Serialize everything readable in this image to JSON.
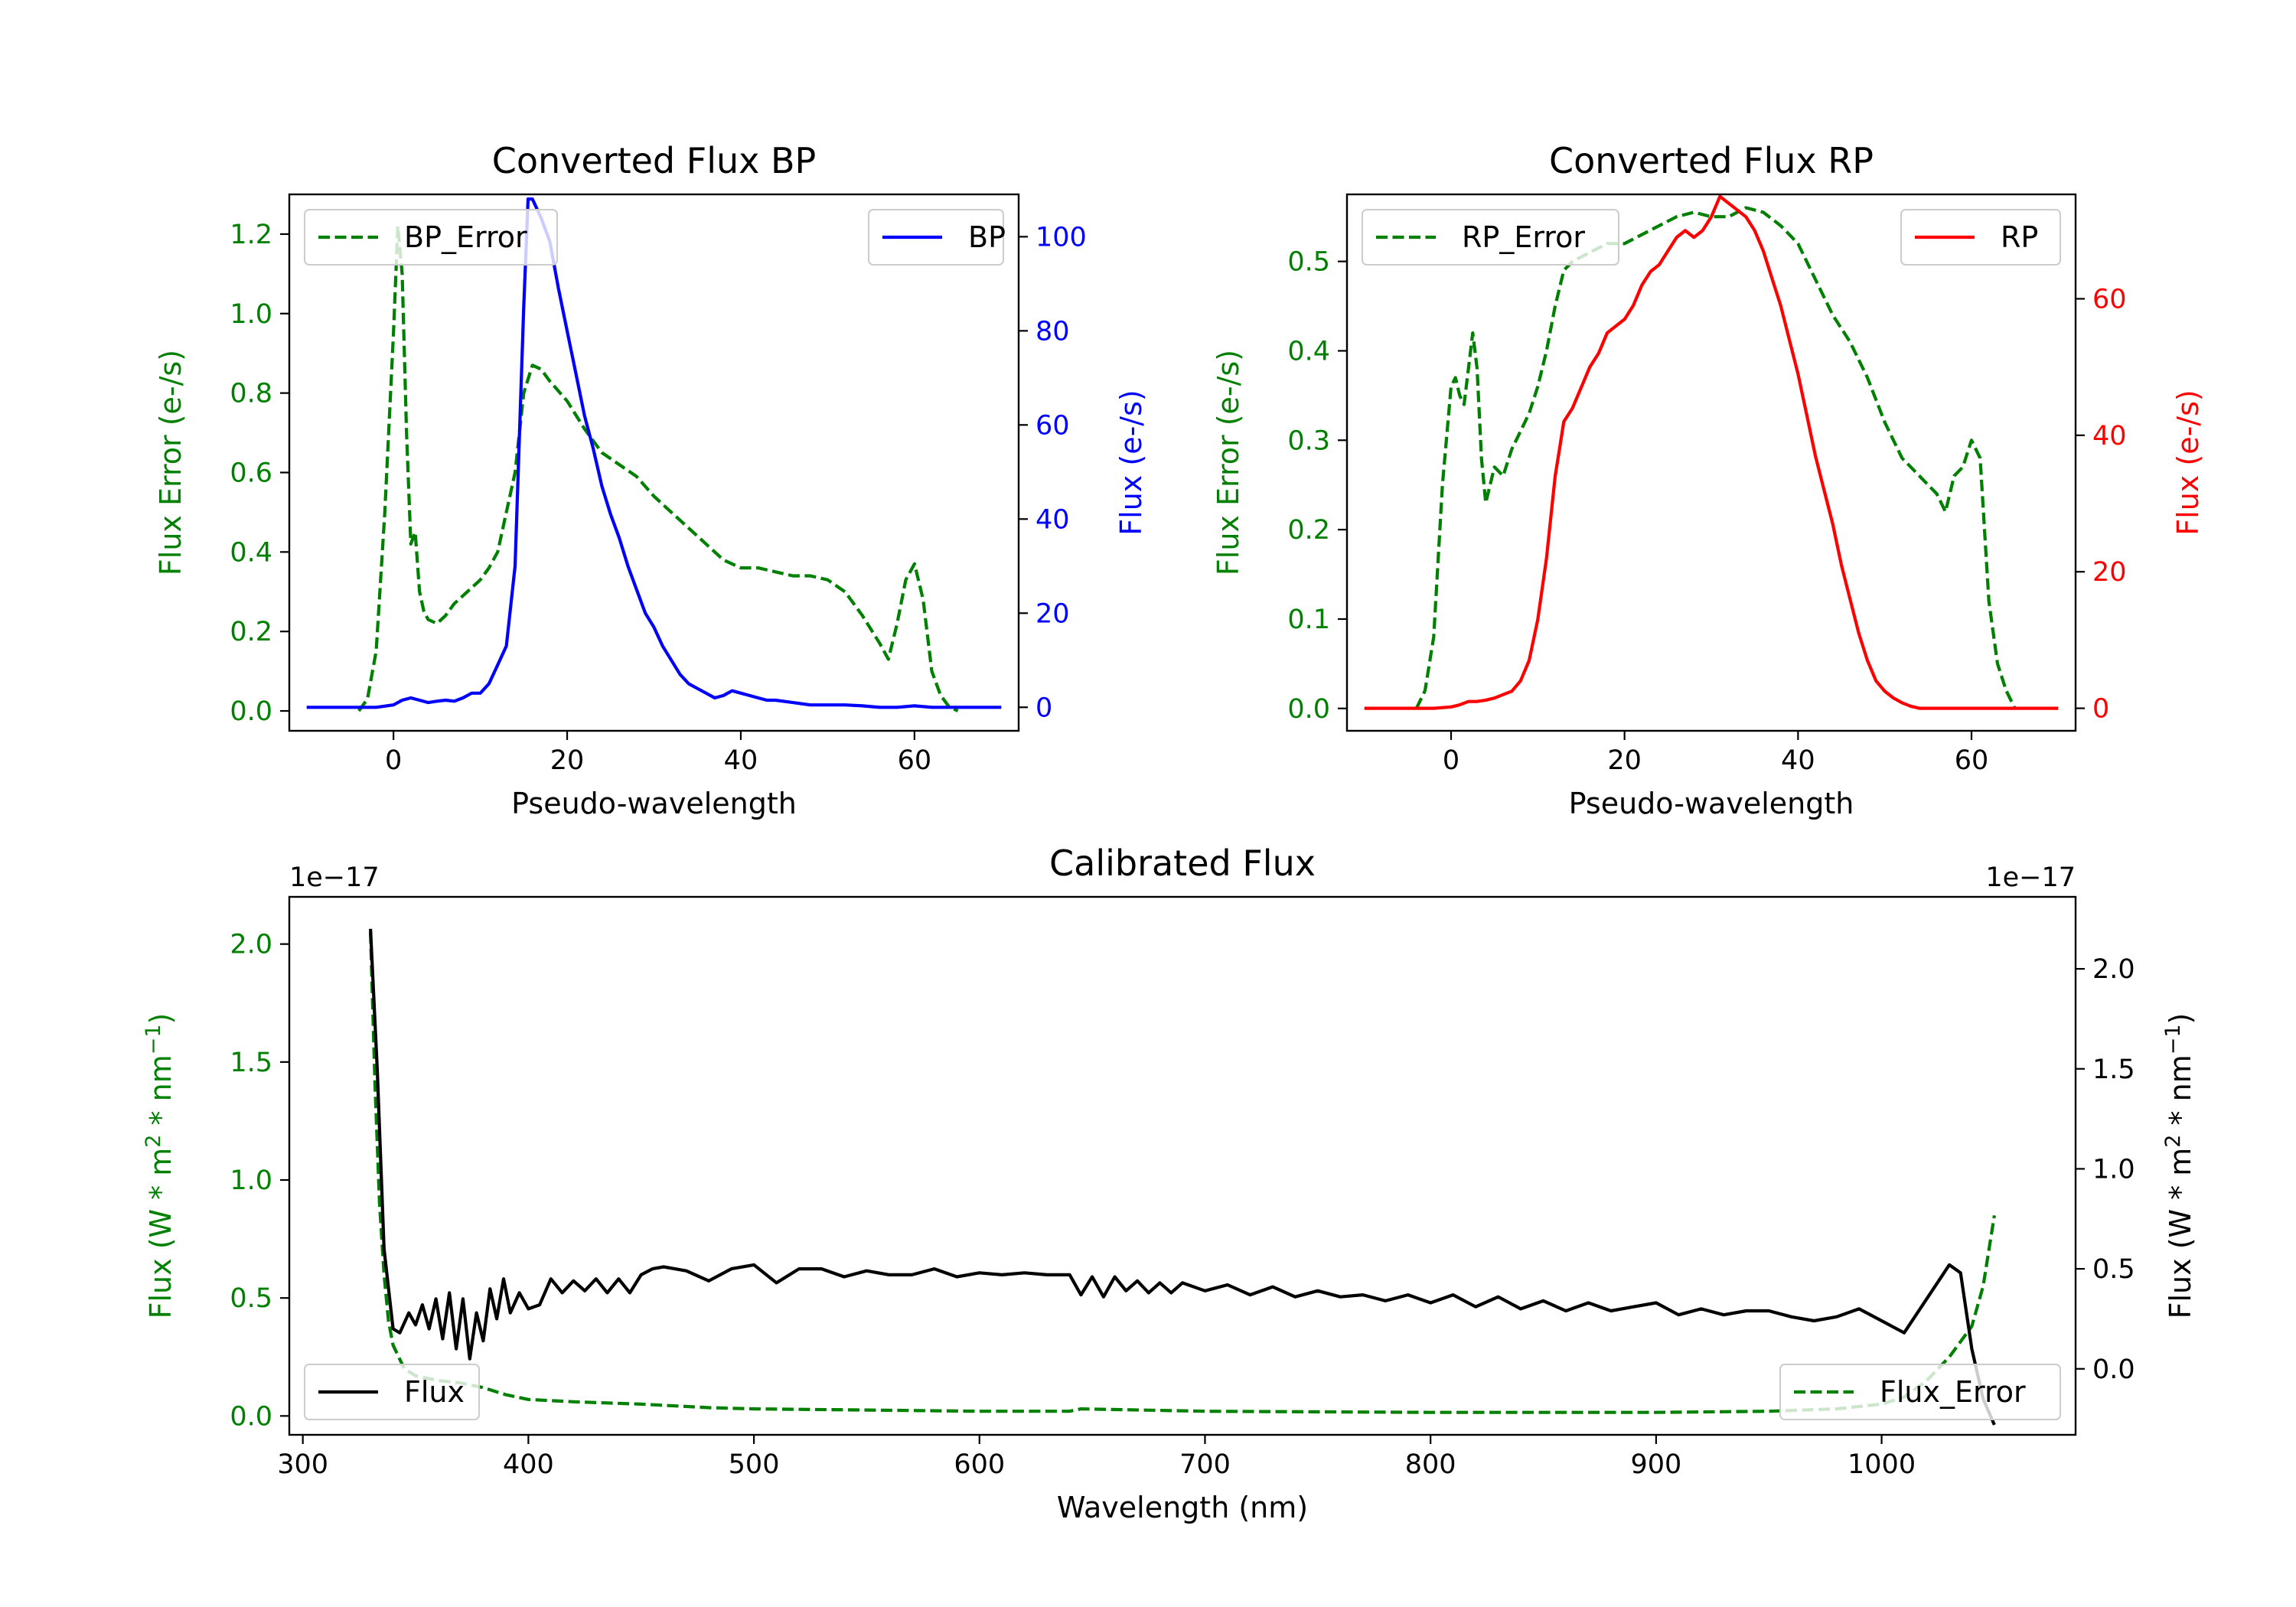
{
  "chart_data": [
    {
      "id": "bp",
      "type": "line",
      "title": "Converted Flux BP",
      "xlabel": "Pseudo-wavelength",
      "xlim": [
        -12,
        72
      ],
      "xticks": [
        0,
        20,
        40,
        60
      ],
      "left": {
        "ylabel": "Flux Error (e-/s)",
        "ylim": [
          -0.05,
          1.3
        ],
        "yticks": [
          0.0,
          0.2,
          0.4,
          0.6,
          0.8,
          1.0,
          1.2
        ],
        "ytick_labels": [
          "0.0",
          "0.2",
          "0.4",
          "0.6",
          "0.8",
          "1.0",
          "1.2"
        ],
        "color": "#008000"
      },
      "right": {
        "ylabel": "Flux (e-/s)",
        "ylim": [
          -5,
          109
        ],
        "yticks": [
          0,
          20,
          40,
          60,
          80,
          100
        ],
        "ytick_labels": [
          "0",
          "20",
          "40",
          "60",
          "80",
          "100"
        ],
        "color": "#0000ff"
      },
      "series": [
        {
          "name": "BP_Error",
          "axis": "left",
          "style": "dashed",
          "color": "#008000",
          "x": [
            -4,
            -3,
            -2,
            -1,
            0,
            0.5,
            1,
            1.5,
            2,
            2.5,
            3,
            3.5,
            4,
            5,
            6,
            7,
            8,
            9,
            10,
            11,
            12,
            13,
            14,
            15,
            16,
            17,
            18,
            20,
            22,
            24,
            26,
            28,
            30,
            32,
            34,
            36,
            38,
            40,
            42,
            44,
            46,
            48,
            50,
            52,
            54,
            56,
            57,
            58,
            59,
            60,
            61,
            62,
            63,
            64,
            65
          ],
          "y": [
            0.0,
            0.03,
            0.15,
            0.5,
            0.95,
            1.22,
            1.1,
            0.7,
            0.42,
            0.45,
            0.3,
            0.25,
            0.23,
            0.22,
            0.24,
            0.27,
            0.29,
            0.31,
            0.33,
            0.36,
            0.4,
            0.5,
            0.6,
            0.8,
            0.87,
            0.86,
            0.83,
            0.78,
            0.71,
            0.65,
            0.62,
            0.59,
            0.54,
            0.5,
            0.46,
            0.42,
            0.38,
            0.36,
            0.36,
            0.35,
            0.34,
            0.34,
            0.33,
            0.3,
            0.24,
            0.17,
            0.13,
            0.22,
            0.33,
            0.37,
            0.28,
            0.1,
            0.04,
            0.01,
            0.0
          ]
        },
        {
          "name": "BP",
          "axis": "right",
          "style": "solid",
          "color": "#0000ff",
          "x": [
            -10,
            -6,
            -4,
            -2,
            0,
            1,
            2,
            3,
            4,
            5,
            6,
            7,
            8,
            9,
            10,
            11,
            12,
            13,
            14,
            15,
            15.5,
            16,
            16.5,
            17,
            18,
            19,
            20,
            21,
            22,
            23,
            24,
            25,
            26,
            27,
            28,
            29,
            30,
            31,
            32,
            33,
            34,
            35,
            36,
            37,
            38,
            39,
            40,
            41,
            42,
            43,
            44,
            46,
            48,
            50,
            52,
            54,
            56,
            58,
            60,
            62,
            64,
            66,
            68,
            70
          ],
          "y": [
            0,
            0,
            0,
            0,
            0.5,
            1.5,
            2,
            1.5,
            1,
            1.3,
            1.5,
            1.3,
            2,
            3,
            3,
            5,
            9,
            13,
            30,
            85,
            108,
            108,
            106,
            104,
            99,
            89,
            80,
            71,
            62,
            55,
            47,
            41,
            36,
            30,
            25,
            20,
            17,
            13,
            10,
            7,
            5,
            4,
            3,
            2,
            2.5,
            3.5,
            3,
            2.5,
            2,
            1.5,
            1.5,
            1,
            0.5,
            0.5,
            0.5,
            0.3,
            0,
            0,
            0.3,
            0,
            0,
            0,
            0,
            0
          ]
        }
      ]
    },
    {
      "id": "rp",
      "type": "line",
      "title": "Converted Flux RP",
      "xlabel": "Pseudo-wavelength",
      "xlim": [
        -12,
        72
      ],
      "xticks": [
        0,
        20,
        40,
        60
      ],
      "left": {
        "ylabel": "Flux Error (e-/s)",
        "ylim": [
          -0.025,
          0.575
        ],
        "yticks": [
          0.0,
          0.1,
          0.2,
          0.3,
          0.4,
          0.5
        ],
        "ytick_labels": [
          "0.0",
          "0.1",
          "0.2",
          "0.3",
          "0.4",
          "0.5"
        ],
        "color": "#008000"
      },
      "right": {
        "ylabel": "Flux (e-/s)",
        "ylim": [
          -3.3,
          75.3
        ],
        "yticks": [
          0,
          20,
          40,
          60
        ],
        "ytick_labels": [
          "0",
          "20",
          "40",
          "60"
        ],
        "color": "#ff0000"
      },
      "series": [
        {
          "name": "RP_Error",
          "axis": "left",
          "style": "dashed",
          "color": "#008000",
          "x": [
            -4,
            -3,
            -2,
            -1,
            0,
            0.5,
            1,
            1.5,
            2,
            2.5,
            3,
            3.5,
            4,
            5,
            6,
            7,
            8,
            9,
            10,
            11,
            12,
            13,
            14,
            16,
            18,
            20,
            22,
            24,
            26,
            28,
            30,
            32,
            34,
            36,
            38,
            40,
            42,
            44,
            46,
            48,
            50,
            52,
            54,
            55,
            56,
            57,
            58,
            59,
            60,
            61,
            62,
            63,
            64,
            65
          ],
          "y": [
            0.0,
            0.02,
            0.08,
            0.25,
            0.36,
            0.37,
            0.35,
            0.34,
            0.38,
            0.42,
            0.38,
            0.28,
            0.23,
            0.27,
            0.26,
            0.29,
            0.31,
            0.33,
            0.36,
            0.4,
            0.45,
            0.49,
            0.5,
            0.51,
            0.52,
            0.52,
            0.53,
            0.54,
            0.55,
            0.555,
            0.55,
            0.55,
            0.56,
            0.555,
            0.54,
            0.52,
            0.48,
            0.44,
            0.41,
            0.37,
            0.32,
            0.28,
            0.26,
            0.25,
            0.24,
            0.22,
            0.26,
            0.27,
            0.3,
            0.28,
            0.12,
            0.05,
            0.02,
            0.0
          ]
        },
        {
          "name": "RP",
          "axis": "right",
          "style": "solid",
          "color": "#ff0000",
          "x": [
            -10,
            -4,
            -2,
            0,
            1,
            2,
            3,
            4,
            5,
            6,
            7,
            8,
            9,
            10,
            11,
            12,
            12.5,
            13,
            14,
            15,
            16,
            17,
            18,
            19,
            20,
            21,
            22,
            23,
            24,
            25,
            26,
            27,
            28,
            29,
            30,
            31,
            32,
            33,
            34,
            35,
            36,
            37,
            38,
            39,
            40,
            41,
            42,
            43,
            44,
            45,
            46,
            47,
            48,
            49,
            50,
            51,
            52,
            53,
            54,
            55,
            56,
            58,
            60,
            62,
            66,
            70
          ],
          "y": [
            0,
            0,
            0,
            0.2,
            0.5,
            1,
            1,
            1.2,
            1.5,
            2,
            2.5,
            4,
            7,
            13,
            22,
            34,
            38,
            42,
            44,
            47,
            50,
            52,
            55,
            56,
            57,
            59,
            62,
            64,
            65,
            67,
            69,
            70,
            69,
            70,
            72,
            75,
            74,
            73,
            72,
            70,
            67,
            63,
            59,
            54,
            49,
            43,
            37,
            32,
            27,
            21,
            16,
            11,
            7,
            4,
            2.5,
            1.5,
            0.8,
            0.3,
            0,
            0,
            0,
            0,
            0,
            0,
            0,
            0
          ]
        }
      ]
    },
    {
      "id": "calibrated",
      "type": "line",
      "title": "Calibrated Flux",
      "xlabel": "Wavelength (nm)",
      "xlim": [
        294,
        1086
      ],
      "xticks": [
        300,
        400,
        500,
        600,
        700,
        800,
        900,
        1000
      ],
      "left": {
        "ylabel": "Flux (W * m",
        "ylabel_sup_a": "2",
        "ylabel_mid": " * nm",
        "ylabel_sup_b": "−1",
        "ylabel_end": ")",
        "offset": "1e−17",
        "ylim": [
          -0.08,
          2.2
        ],
        "yticks": [
          0.0,
          0.5,
          1.0,
          1.5,
          2.0
        ],
        "ytick_labels": [
          "0.0",
          "0.5",
          "1.0",
          "1.5",
          "2.0"
        ],
        "color": "#008000"
      },
      "right": {
        "ylabel": "Flux (W * m",
        "ylabel_sup_a": "2",
        "ylabel_mid": " * nm",
        "ylabel_sup_b": "−1",
        "ylabel_end": ")",
        "offset": "1e−17",
        "ylim": [
          -0.33,
          2.36
        ],
        "yticks": [
          0.0,
          0.5,
          1.0,
          1.5,
          2.0
        ],
        "ytick_labels": [
          "0.0",
          "0.5",
          "1.0",
          "1.5",
          "2.0"
        ],
        "color": "#000000"
      },
      "series": [
        {
          "name": "Flux_Error",
          "axis": "left",
          "style": "dashed",
          "color": "#008000",
          "x": [
            330,
            332,
            334,
            336,
            338,
            340,
            345,
            350,
            360,
            370,
            380,
            390,
            400,
            420,
            450,
            480,
            500,
            550,
            600,
            640,
            645,
            700,
            800,
            900,
            950,
            980,
            1000,
            1010,
            1020,
            1030,
            1040,
            1045,
            1050
          ],
          "y": [
            2.05,
            1.4,
            0.9,
            0.6,
            0.4,
            0.3,
            0.2,
            0.17,
            0.15,
            0.14,
            0.12,
            0.09,
            0.07,
            0.06,
            0.05,
            0.035,
            0.03,
            0.025,
            0.02,
            0.02,
            0.03,
            0.02,
            0.015,
            0.015,
            0.02,
            0.03,
            0.05,
            0.08,
            0.15,
            0.25,
            0.38,
            0.55,
            0.85
          ]
        },
        {
          "name": "Flux",
          "axis": "right",
          "style": "solid",
          "color": "#000000",
          "x": [
            330,
            333,
            336,
            340,
            343,
            347,
            350,
            353,
            356,
            359,
            362,
            365,
            368,
            371,
            374,
            377,
            380,
            383,
            386,
            389,
            392,
            396,
            400,
            405,
            410,
            415,
            420,
            425,
            430,
            435,
            440,
            445,
            450,
            455,
            460,
            470,
            480,
            490,
            500,
            510,
            520,
            530,
            540,
            550,
            560,
            570,
            580,
            590,
            600,
            610,
            620,
            630,
            640,
            645,
            650,
            655,
            660,
            665,
            670,
            675,
            680,
            685,
            690,
            700,
            710,
            720,
            730,
            740,
            750,
            760,
            770,
            780,
            790,
            800,
            810,
            820,
            830,
            840,
            850,
            860,
            870,
            880,
            890,
            900,
            910,
            920,
            930,
            940,
            950,
            960,
            970,
            980,
            990,
            1000,
            1010,
            1020,
            1030,
            1035,
            1040,
            1045,
            1050
          ],
          "y": [
            2.2,
            1.5,
            0.6,
            0.2,
            0.18,
            0.28,
            0.22,
            0.32,
            0.2,
            0.35,
            0.15,
            0.38,
            0.1,
            0.35,
            0.05,
            0.28,
            0.14,
            0.4,
            0.25,
            0.45,
            0.28,
            0.38,
            0.3,
            0.32,
            0.45,
            0.38,
            0.44,
            0.39,
            0.45,
            0.38,
            0.45,
            0.38,
            0.47,
            0.5,
            0.51,
            0.49,
            0.44,
            0.5,
            0.52,
            0.43,
            0.5,
            0.5,
            0.46,
            0.49,
            0.47,
            0.47,
            0.5,
            0.46,
            0.48,
            0.47,
            0.48,
            0.47,
            0.47,
            0.37,
            0.46,
            0.36,
            0.46,
            0.39,
            0.44,
            0.38,
            0.43,
            0.38,
            0.43,
            0.39,
            0.42,
            0.37,
            0.41,
            0.36,
            0.39,
            0.36,
            0.37,
            0.34,
            0.37,
            0.33,
            0.37,
            0.31,
            0.36,
            0.3,
            0.34,
            0.29,
            0.33,
            0.29,
            0.31,
            0.33,
            0.27,
            0.3,
            0.27,
            0.29,
            0.29,
            0.26,
            0.24,
            0.26,
            0.3,
            0.24,
            0.18,
            0.35,
            0.52,
            0.48,
            0.1,
            -0.15,
            -0.28
          ]
        }
      ]
    }
  ]
}
